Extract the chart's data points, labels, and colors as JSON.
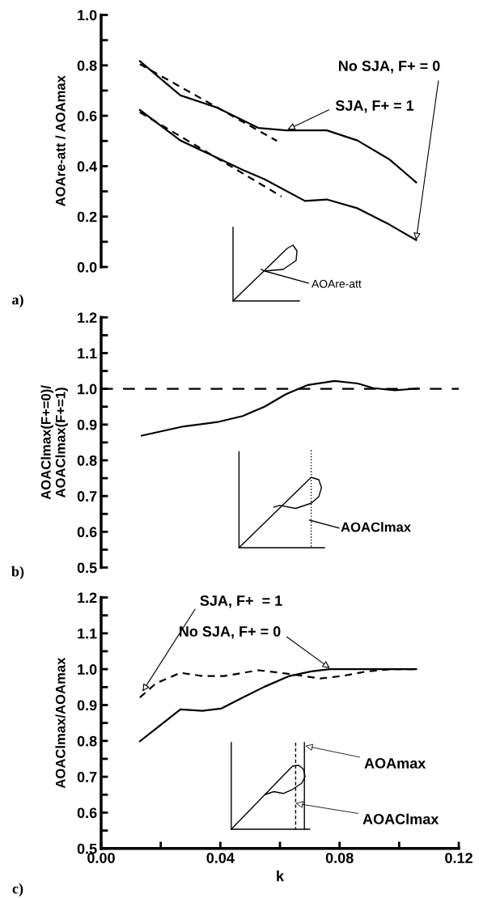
{
  "chart_data": [
    {
      "type": "line",
      "ylabel": "AOAre-att / AOAmax",
      "xlim": [
        0,
        0.12
      ],
      "ylim": [
        0,
        1.0
      ],
      "tick_labels": "y",
      "grid": false,
      "yticks": [
        {
          "value": 0,
          "label": "0.0"
        },
        {
          "value": 0.1,
          "label": null
        },
        {
          "value": 0.2,
          "label": "0.2"
        },
        {
          "value": 0.3,
          "label": null
        },
        {
          "value": 0.4,
          "label": "0.4"
        },
        {
          "value": 0.5,
          "label": null
        },
        {
          "value": 0.6,
          "label": "0.6"
        },
        {
          "value": 0.7,
          "label": null
        },
        {
          "value": 0.8,
          "label": "0.8"
        },
        {
          "value": 0.9,
          "label": null
        },
        {
          "value": 1.0,
          "label": "1.0"
        }
      ],
      "series": [
        {
          "color": "#000000",
          "line_style": "solid",
          "x": [
            0.013,
            0.0266,
            0.039,
            0.0527,
            0.062,
            0.0757,
            0.086,
            0.0966,
            0.1057
          ],
          "values": [
            0.817,
            0.681,
            0.632,
            0.552,
            0.542,
            0.542,
            0.502,
            0.428,
            0.336
          ]
        },
        {
          "color": "#000000",
          "line_style": "dashed",
          "x": [
            0.013,
            0.059
          ],
          "values": [
            0.805,
            0.5
          ]
        },
        {
          "color": "#000000",
          "line_style": "solid",
          "x": [
            0.013,
            0.0266,
            0.0475,
            0.0548,
            0.0684,
            0.0757,
            0.086,
            0.0966,
            0.1057
          ],
          "values": [
            0.623,
            0.502,
            0.385,
            0.348,
            0.262,
            0.268,
            0.233,
            0.169,
            0.107
          ]
        },
        {
          "color": "#000000",
          "line_style": "dashed",
          "x": [
            0.013,
            0.0605
          ],
          "values": [
            0.614,
            0.28
          ]
        }
      ],
      "annotations": [
        {
          "text": "No SJA, F+ = 0",
          "x": 0.1057,
          "y": 0.107
        },
        {
          "text": "SJA, F+ = 1",
          "x": 0.0626,
          "y": 0.546
        },
        "AOAre-att",
        "a)"
      ]
    },
    {
      "type": "line",
      "ylabel": "AOAClmax(F+=0)/\nAOAClmax(F+=1)",
      "xlim": [
        0,
        0.12
      ],
      "ylim": [
        0.5,
        1.2
      ],
      "tick_labels": "y",
      "grid": false,
      "yticks": [
        {
          "value": 0.5,
          "label": "0.5"
        },
        {
          "value": 0.55,
          "label": null
        },
        {
          "value": 0.6,
          "label": "0.6"
        },
        {
          "value": 0.65,
          "label": null
        },
        {
          "value": 0.7,
          "label": "0.7"
        },
        {
          "value": 0.75,
          "label": null
        },
        {
          "value": 0.8,
          "label": "0.8"
        },
        {
          "value": 0.85,
          "label": null
        },
        {
          "value": 0.9,
          "label": "0.9"
        },
        {
          "value": 0.95,
          "label": null
        },
        {
          "value": 1.0,
          "label": "1.0"
        },
        {
          "value": 1.05,
          "label": null
        },
        {
          "value": 1.1,
          "label": "1.1"
        },
        {
          "value": 1.15,
          "label": null
        },
        {
          "value": 1.2,
          "label": "1.2"
        }
      ],
      "series": [
        {
          "color": "#000000",
          "line_style": "solid",
          "x": [
            0.0136,
            0.0277,
            0.039,
            0.0475,
            0.0548,
            0.062,
            0.0694,
            0.0783,
            0.0861,
            0.0913,
            0.0986,
            0.1065
          ],
          "values": [
            0.869,
            0.895,
            0.907,
            0.924,
            0.95,
            0.985,
            1.011,
            1.022,
            1.015,
            1.002,
            0.996,
            1.001
          ]
        }
      ],
      "ref_lines": [
        {
          "axis": "y",
          "value": 1.0,
          "label": null,
          "color": "#000000",
          "line_style": "dashed"
        }
      ],
      "annotations": [
        "AOAClmax",
        "b)"
      ]
    },
    {
      "type": "line",
      "xlabel": "k",
      "ylabel": "AOAClmax/AOAmax",
      "xlim": [
        0,
        0.12
      ],
      "ylim": [
        0.5,
        1.2
      ],
      "grid": false,
      "xticks": [
        {
          "value": 0,
          "label": "0.00"
        },
        {
          "value": 0.02,
          "label": null
        },
        {
          "value": 0.04,
          "label": "0.04"
        },
        {
          "value": 0.06,
          "label": null
        },
        {
          "value": 0.08,
          "label": "0.08"
        },
        {
          "value": 0.1,
          "label": null
        },
        {
          "value": 0.12,
          "label": "0.12"
        }
      ],
      "yticks": [
        {
          "value": 0.5,
          "label": "0.5"
        },
        {
          "value": 0.55,
          "label": null
        },
        {
          "value": 0.6,
          "label": "0.6"
        },
        {
          "value": 0.65,
          "label": null
        },
        {
          "value": 0.7,
          "label": "0.7"
        },
        {
          "value": 0.75,
          "label": null
        },
        {
          "value": 0.8,
          "label": "0.8"
        },
        {
          "value": 0.85,
          "label": null
        },
        {
          "value": 0.9,
          "label": "0.9"
        },
        {
          "value": 0.95,
          "label": null
        },
        {
          "value": 1.0,
          "label": "1.0"
        },
        {
          "value": 1.05,
          "label": null
        },
        {
          "value": 1.1,
          "label": "1.1"
        },
        {
          "value": 1.15,
          "label": null
        },
        {
          "value": 1.2,
          "label": "1.2"
        }
      ],
      "series": [
        {
          "color": "#000000",
          "line_style": "solid",
          "x": [
            0.013,
            0.0204,
            0.0266,
            0.034,
            0.0402,
            0.0475,
            0.0548,
            0.0632,
            0.0705,
            0.0767,
            0.086,
            0.1057
          ],
          "values": [
            0.799,
            0.847,
            0.888,
            0.884,
            0.89,
            0.921,
            0.951,
            0.981,
            0.994,
            1.0,
            1.0,
            1.0
          ]
        },
        {
          "color": "#000000",
          "line_style": "dashed",
          "x": [
            0.013,
            0.0183,
            0.0266,
            0.034,
            0.0413,
            0.0527,
            0.06,
            0.0663,
            0.0736,
            0.0809,
            0.0893,
            0.0976,
            0.1057
          ],
          "values": [
            0.921,
            0.96,
            0.99,
            0.981,
            0.981,
            0.997,
            0.99,
            0.983,
            0.974,
            0.981,
            0.994,
            1.0,
            1.0
          ]
        }
      ],
      "annotations": [
        {
          "text": "SJA, F+  = 1",
          "x": 0.0139,
          "y": 0.938
        },
        {
          "text": "No SJA, F+ = 0",
          "x": 0.0767,
          "y": 1.003
        },
        "AOAmax",
        "AOAClmax",
        "c)"
      ]
    }
  ]
}
